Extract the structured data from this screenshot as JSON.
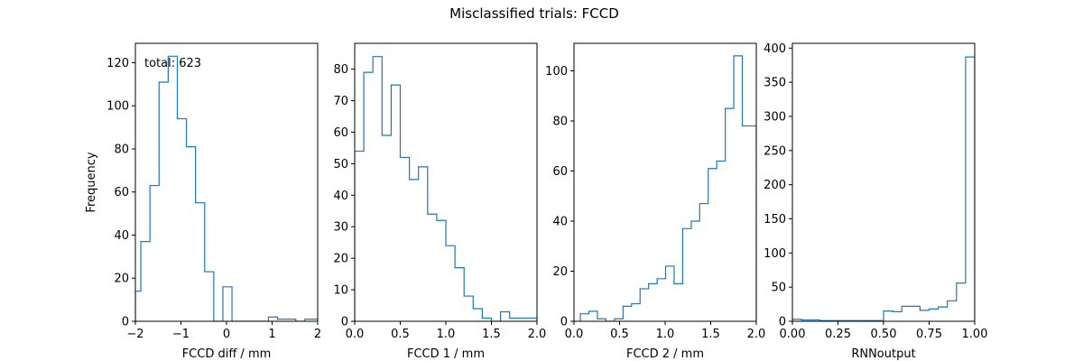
{
  "figure": {
    "title": "Misclassified trials: FCCD"
  },
  "chart_data": [
    {
      "type": "histogram",
      "xlabel": "FCCD diff / mm",
      "ylabel": "Frequency",
      "xlim": [
        -2,
        2
      ],
      "ylim": [
        0,
        129
      ],
      "xticks": [
        -2,
        -1,
        0,
        1,
        2
      ],
      "yticks": [
        0,
        20,
        40,
        60,
        80,
        100,
        120
      ],
      "annotation": "total: 623",
      "bin_edges": [
        -2.0,
        -1.88,
        -1.68,
        -1.48,
        -1.28,
        -1.08,
        -0.88,
        -0.68,
        -0.48,
        -0.28,
        -0.08,
        0.12,
        0.32,
        0.52,
        0.72,
        0.92,
        1.12,
        1.32,
        1.52,
        1.72,
        2.0
      ],
      "counts": [
        14,
        37,
        63,
        111,
        123,
        94,
        81,
        55,
        23,
        0,
        16,
        0,
        0,
        0,
        0,
        2,
        1,
        1,
        0,
        1
      ],
      "color": "#1f77b4"
    },
    {
      "type": "histogram",
      "xlabel": "FCCD 1 / mm",
      "ylabel": "",
      "xlim": [
        0,
        2
      ],
      "ylim": [
        0,
        88.2
      ],
      "xticks": [
        0.0,
        0.5,
        1.0,
        1.5,
        2.0
      ],
      "yticks": [
        0,
        10,
        20,
        30,
        40,
        50,
        60,
        70,
        80
      ],
      "bin_edges": [
        0.0,
        0.1,
        0.2,
        0.3,
        0.4,
        0.5,
        0.6,
        0.7,
        0.8,
        0.9,
        1.0,
        1.1,
        1.2,
        1.3,
        1.4,
        1.5,
        1.6,
        1.7,
        1.8,
        1.9,
        2.0
      ],
      "counts": [
        54,
        79,
        84,
        59,
        75,
        52,
        45,
        49,
        34,
        32,
        24,
        17,
        8,
        4,
        1,
        0,
        3,
        1,
        1,
        1
      ],
      "color": "#1f77b4"
    },
    {
      "type": "histogram",
      "xlabel": "FCCD 2 / mm",
      "ylabel": "",
      "xlim": [
        0,
        2
      ],
      "ylim": [
        0,
        111
      ],
      "xticks": [
        0.0,
        0.5,
        1.0,
        1.5,
        2.0
      ],
      "yticks": [
        0,
        20,
        40,
        60,
        80,
        100
      ],
      "bin_edges": [
        0.07,
        0.164,
        0.257,
        0.351,
        0.444,
        0.538,
        0.631,
        0.725,
        0.818,
        0.912,
        1.005,
        1.099,
        1.192,
        1.286,
        1.379,
        1.473,
        1.566,
        1.66,
        1.753,
        1.847,
        1.94,
        2.0
      ],
      "counts": [
        3,
        4,
        1,
        0,
        1,
        6,
        7,
        13,
        15,
        17,
        22,
        15,
        37,
        40,
        47,
        61,
        64,
        85,
        106,
        78,
        78
      ],
      "color": "#1f77b4"
    },
    {
      "type": "histogram",
      "xlabel": "RNNoutput",
      "ylabel": "",
      "xlim": [
        0,
        1
      ],
      "ylim": [
        0,
        407
      ],
      "xticks": [
        "0.00",
        "0.25",
        "0.50",
        "0.75",
        "1.00"
      ],
      "xtick_values": [
        0.0,
        0.25,
        0.5,
        0.75,
        1.0
      ],
      "yticks": [
        0,
        50,
        100,
        150,
        200,
        250,
        300,
        350,
        400
      ],
      "bin_edges": [
        0.0,
        0.05,
        0.1,
        0.15,
        0.2,
        0.25,
        0.3,
        0.35,
        0.4,
        0.45,
        0.5,
        0.55,
        0.6,
        0.65,
        0.7,
        0.75,
        0.8,
        0.85,
        0.9,
        0.95,
        1.0
      ],
      "counts": [
        3,
        2,
        2,
        1,
        1,
        1,
        1,
        1,
        1,
        1,
        15,
        14,
        22,
        22,
        16,
        18,
        21,
        30,
        56,
        387
      ],
      "color": "#1f77b4"
    }
  ]
}
